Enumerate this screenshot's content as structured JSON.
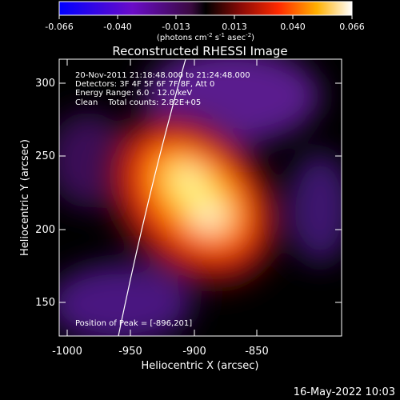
{
  "colorbar": {
    "ticks": [
      "-0.066",
      "-0.040",
      "-0.013",
      "0.013",
      "0.040",
      "0.066"
    ],
    "unit_text": "(photons cm",
    "unit_sup1": "-2",
    "unit_mid": " s",
    "unit_sup2": "-1",
    "unit_mid2": " asec",
    "unit_sup3": "-2",
    "unit_end": ")"
  },
  "chart_data": {
    "type": "heatmap",
    "title": "Reconstructed RHESSI Image",
    "xlabel": "Heliocentric X (arcsec)",
    "ylabel": "Heliocentric Y (arcsec)",
    "xlim": [
      -1008,
      -915
    ],
    "ylim": [
      124,
      316
    ],
    "x_ticks": [
      "-1000",
      "-950",
      "-900",
      "-850"
    ],
    "y_ticks": [
      "150",
      "200",
      "250",
      "300"
    ],
    "zlim": [
      -0.066,
      0.066
    ],
    "peak_value": 0.066,
    "peak_position": [
      -896,
      201
    ],
    "annotations": [
      "20-Nov-2011 21:18:48.000 to 21:24:48.000",
      "Detectors: 3F 4F 5F 6F 7F 8F, Att 0",
      "Energy Range: 6.0 - 12.0 keV",
      "Clean    Total counts: 2.82E+05"
    ],
    "peak_label": "Position of Peak = [-896,201]"
  },
  "footer": {
    "date": "16-May-2022 10:03"
  },
  "colors": {
    "background": "#000000",
    "axes": "#ffffff",
    "limb_line": "#ffffff"
  }
}
